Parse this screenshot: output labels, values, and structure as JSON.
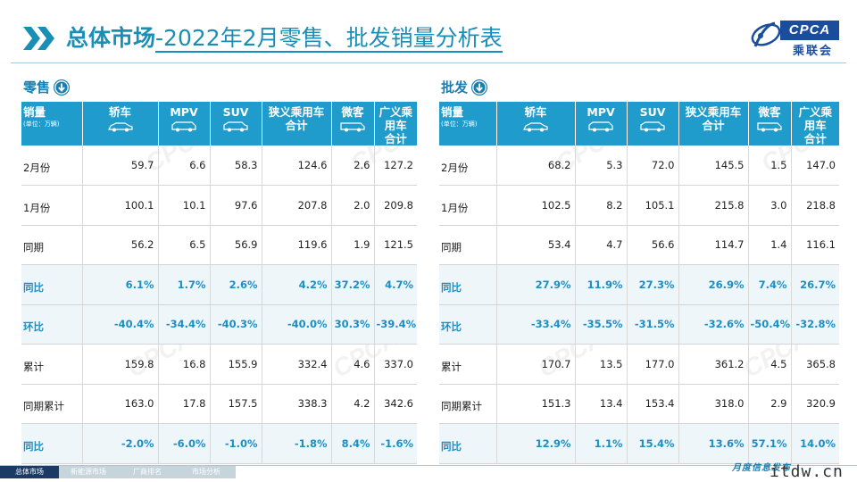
{
  "header": {
    "title_bold": "总体市场",
    "title_rest": "-2022年2月零售、批发销量分析表"
  },
  "logo": {
    "text": "CPCA",
    "cn": "乘联会"
  },
  "columns": {
    "first": "销量",
    "unit": "(单位：万辆)",
    "c1": "轿车",
    "c2": "MPV",
    "c3": "SUV",
    "c4a": "狭义乘用车",
    "c4b": "合计",
    "c5": "微客",
    "c6a": "广义乘用车",
    "c6b": "合计"
  },
  "retail": {
    "label": "零售",
    "rows": [
      {
        "label": "2月份",
        "v": [
          "59.7",
          "6.6",
          "58.3",
          "124.6",
          "2.6",
          "127.2"
        ],
        "hl": false
      },
      {
        "label": "1月份",
        "v": [
          "100.1",
          "10.1",
          "97.6",
          "207.8",
          "2.0",
          "209.8"
        ],
        "hl": false
      },
      {
        "label": "同期",
        "v": [
          "56.2",
          "6.5",
          "56.9",
          "119.6",
          "1.9",
          "121.5"
        ],
        "hl": false
      },
      {
        "label": "同比",
        "v": [
          "6.1%",
          "1.7%",
          "2.6%",
          "4.2%",
          "37.2%",
          "4.7%"
        ],
        "hl": true
      },
      {
        "label": "环比",
        "v": [
          "-40.4%",
          "-34.4%",
          "-40.3%",
          "-40.0%",
          "30.3%",
          "-39.4%"
        ],
        "hl": true
      },
      {
        "label": "累计",
        "v": [
          "159.8",
          "16.8",
          "155.9",
          "332.4",
          "4.6",
          "337.0"
        ],
        "hl": false
      },
      {
        "label": "同期累计",
        "v": [
          "163.0",
          "17.8",
          "157.5",
          "338.3",
          "4.2",
          "342.6"
        ],
        "hl": false
      },
      {
        "label": "同比",
        "v": [
          "-2.0%",
          "-6.0%",
          "-1.0%",
          "-1.8%",
          "8.4%",
          "-1.6%"
        ],
        "hl": true
      }
    ]
  },
  "wholesale": {
    "label": "批发",
    "rows": [
      {
        "label": "2月份",
        "v": [
          "68.2",
          "5.3",
          "72.0",
          "145.5",
          "1.5",
          "147.0"
        ],
        "hl": false
      },
      {
        "label": "1月份",
        "v": [
          "102.5",
          "8.2",
          "105.1",
          "215.8",
          "3.0",
          "218.8"
        ],
        "hl": false
      },
      {
        "label": "同期",
        "v": [
          "53.4",
          "4.7",
          "56.6",
          "114.7",
          "1.4",
          "116.1"
        ],
        "hl": false
      },
      {
        "label": "同比",
        "v": [
          "27.9%",
          "11.9%",
          "27.3%",
          "26.9%",
          "7.4%",
          "26.7%"
        ],
        "hl": true
      },
      {
        "label": "环比",
        "v": [
          "-33.4%",
          "-35.5%",
          "-31.5%",
          "-32.6%",
          "-50.4%",
          "-32.8%"
        ],
        "hl": true
      },
      {
        "label": "累计",
        "v": [
          "170.7",
          "13.5",
          "177.0",
          "361.2",
          "4.5",
          "365.8"
        ],
        "hl": false
      },
      {
        "label": "同期累计",
        "v": [
          "151.3",
          "13.4",
          "153.4",
          "318.0",
          "2.9",
          "320.9"
        ],
        "hl": false
      },
      {
        "label": "同比",
        "v": [
          "12.9%",
          "1.1%",
          "15.4%",
          "13.6%",
          "57.1%",
          "14.0%"
        ],
        "hl": true
      }
    ]
  },
  "footer": {
    "tabs": [
      "总体市场",
      "新能源市场",
      "厂商排名",
      "市场分析"
    ],
    "active_tab": 0,
    "monthly_text": "月度信息发布",
    "site": "itdw.cn"
  },
  "watermark": "CPCA",
  "colors": {
    "accent": "#1a8fb6",
    "header_bg": "#1f9ccb",
    "highlight_text": "#1a8fc6",
    "logo_blue": "#1a4e9c",
    "active_tab": "#1b3a66"
  }
}
